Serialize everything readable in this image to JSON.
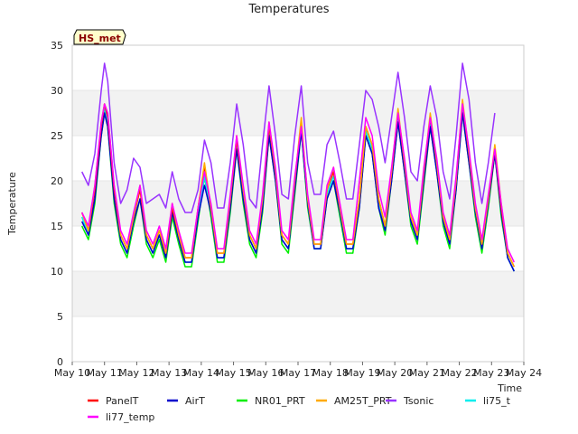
{
  "chart_data": {
    "type": "line",
    "title": "Temperatures",
    "xlabel": "Time",
    "ylabel": "Temperature",
    "ylim": [
      0,
      35
    ],
    "xlim": [
      10,
      24
    ],
    "yticks": [
      0,
      5,
      10,
      15,
      20,
      25,
      30,
      35
    ],
    "xticks": [
      {
        "v": 10,
        "label": "May 10"
      },
      {
        "v": 11,
        "label": "May 11"
      },
      {
        "v": 12,
        "label": "May 12"
      },
      {
        "v": 13,
        "label": "May 13"
      },
      {
        "v": 14,
        "label": "May 14"
      },
      {
        "v": 15,
        "label": "May 15"
      },
      {
        "v": 16,
        "label": "May 16"
      },
      {
        "v": 17,
        "label": "May 17"
      },
      {
        "v": 18,
        "label": "May 18"
      },
      {
        "v": 19,
        "label": "May 19"
      },
      {
        "v": 20,
        "label": "May 20"
      },
      {
        "v": 21,
        "label": "May 21"
      },
      {
        "v": 22,
        "label": "May 22"
      },
      {
        "v": 23,
        "label": "May 23"
      },
      {
        "v": 24,
        "label": "May 24"
      }
    ],
    "badge": "HS_met",
    "series": [
      {
        "name": "PanelT",
        "color": "#ff0000",
        "x": [
          10.3,
          10.5,
          10.7,
          10.9,
          11.0,
          11.1,
          11.3,
          11.5,
          11.7,
          11.9,
          12.1,
          12.3,
          12.5,
          12.7,
          12.9,
          13.1,
          13.3,
          13.5,
          13.7,
          13.9,
          14.1,
          14.3,
          14.5,
          14.7,
          14.9,
          15.1,
          15.3,
          15.5,
          15.7,
          15.9,
          16.1,
          16.3,
          16.5,
          16.7,
          16.9,
          17.1,
          17.3,
          17.5,
          17.7,
          17.9,
          18.1,
          18.3,
          18.5,
          18.7,
          18.9,
          19.1,
          19.3,
          19.5,
          19.7,
          19.9,
          20.1,
          20.3,
          20.5,
          20.7,
          20.9,
          21.1,
          21.3,
          21.5,
          21.7,
          21.9,
          22.1,
          22.3,
          22.5,
          22.7,
          22.9,
          23.1,
          23.3,
          23.5,
          23.7
        ],
        "values": [
          16.5,
          14.5,
          19,
          26,
          28.5,
          27,
          19,
          14,
          12.5,
          16,
          19,
          14,
          12.5,
          14.5,
          12,
          17,
          14,
          11.5,
          11.5,
          17,
          21.5,
          17,
          12,
          12,
          18,
          24.5,
          19,
          14,
          12.5,
          18,
          26,
          21,
          14,
          13,
          20,
          26.5,
          18,
          13,
          13,
          19,
          21,
          17,
          13,
          13,
          18,
          26,
          24,
          18,
          15,
          21,
          27.5,
          22,
          16,
          14,
          21,
          27,
          22,
          16,
          13.5,
          20,
          28.5,
          23,
          17,
          13,
          18,
          23.5,
          17,
          12,
          10.5
        ]
      },
      {
        "name": "AirT",
        "color": "#0000cc",
        "x": [
          10.3,
          10.5,
          10.7,
          10.9,
          11.0,
          11.1,
          11.3,
          11.5,
          11.7,
          11.9,
          12.1,
          12.3,
          12.5,
          12.7,
          12.9,
          13.1,
          13.3,
          13.5,
          13.7,
          13.9,
          14.1,
          14.3,
          14.5,
          14.7,
          14.9,
          15.1,
          15.3,
          15.5,
          15.7,
          15.9,
          16.1,
          16.3,
          16.5,
          16.7,
          16.9,
          17.1,
          17.3,
          17.5,
          17.7,
          17.9,
          18.1,
          18.3,
          18.5,
          18.7,
          18.9,
          19.1,
          19.3,
          19.5,
          19.7,
          19.9,
          20.1,
          20.3,
          20.5,
          20.7,
          20.9,
          21.1,
          21.3,
          21.5,
          21.7,
          21.9,
          22.1,
          22.3,
          22.5,
          22.7,
          22.9,
          23.1,
          23.3,
          23.5,
          23.7
        ],
        "values": [
          15.5,
          14,
          18,
          25,
          27.5,
          26,
          18,
          13.5,
          12,
          15.5,
          18,
          13.5,
          12,
          14,
          11.5,
          16.5,
          13.5,
          11,
          11,
          16,
          19.5,
          16.5,
          11.5,
          11.5,
          17,
          23.5,
          18,
          13.5,
          12,
          17,
          25,
          20,
          13.5,
          12.5,
          19,
          25.5,
          17.5,
          12.5,
          12.5,
          18,
          20,
          16.5,
          12.5,
          12.5,
          17,
          25,
          23,
          17,
          14.5,
          20,
          26.5,
          21,
          15.5,
          13.5,
          20,
          26,
          21,
          15.5,
          13,
          19,
          27.5,
          22,
          16.5,
          12.5,
          17.5,
          23,
          16.5,
          11.5,
          10
        ]
      },
      {
        "name": "NR01_PRT",
        "color": "#00ee00",
        "x": [
          10.3,
          10.5,
          10.7,
          10.9,
          11.0,
          11.1,
          11.3,
          11.5,
          11.7,
          11.9,
          12.1,
          12.3,
          12.5,
          12.7,
          12.9,
          13.1,
          13.3,
          13.5,
          13.7,
          13.9,
          14.1,
          14.3,
          14.5,
          14.7,
          14.9,
          15.1,
          15.3,
          15.5,
          15.7,
          15.9,
          16.1,
          16.3,
          16.5,
          16.7,
          16.9,
          17.1,
          17.3,
          17.5,
          17.7,
          17.9,
          18.1,
          18.3,
          18.5,
          18.7,
          18.9,
          19.1,
          19.3,
          19.5,
          19.7,
          19.9,
          20.1,
          20.3,
          20.5,
          20.7,
          20.9,
          21.1,
          21.3,
          21.5,
          21.7,
          21.9,
          22.1,
          22.3,
          22.5,
          22.7,
          22.9,
          23.1,
          23.3,
          23.5,
          23.7
        ],
        "values": [
          15,
          13.5,
          17.5,
          25,
          27.5,
          26,
          17.5,
          13,
          11.5,
          15,
          18,
          13,
          11.5,
          13.5,
          11,
          16,
          13,
          10.5,
          10.5,
          15.5,
          20.5,
          16,
          11,
          11,
          16.5,
          23.5,
          17.5,
          13,
          11.5,
          16.5,
          25,
          20,
          13,
          12,
          18.5,
          25.5,
          17,
          12.5,
          12.5,
          18,
          20,
          16,
          12,
          12,
          17,
          25,
          23,
          17,
          14,
          20,
          26.5,
          21,
          15,
          13,
          19.5,
          26,
          21,
          15,
          12.5,
          19,
          27.5,
          22,
          16,
          12,
          17,
          23,
          16,
          11.5,
          10
        ]
      },
      {
        "name": "AM25T_PRT",
        "color": "#ffaa00",
        "x": [
          10.3,
          10.5,
          10.7,
          10.9,
          11.0,
          11.1,
          11.3,
          11.5,
          11.7,
          11.9,
          12.1,
          12.3,
          12.5,
          12.7,
          12.9,
          13.1,
          13.3,
          13.5,
          13.7,
          13.9,
          14.1,
          14.3,
          14.5,
          14.7,
          14.9,
          15.1,
          15.3,
          15.5,
          15.7,
          15.9,
          16.1,
          16.3,
          16.5,
          16.7,
          16.9,
          17.1,
          17.3,
          17.5,
          17.7,
          17.9,
          18.1,
          18.3,
          18.5,
          18.7,
          18.9,
          19.1,
          19.3,
          19.5,
          19.7,
          19.9,
          20.1,
          20.3,
          20.5,
          20.7,
          20.9,
          21.1,
          21.3,
          21.5,
          21.7,
          21.9,
          22.1,
          22.3,
          22.5,
          22.7,
          22.9,
          23.1,
          23.3,
          23.5,
          23.7
        ],
        "values": [
          16.5,
          14.5,
          19.5,
          26.5,
          28.5,
          27.5,
          19.5,
          14,
          12.5,
          16,
          19.5,
          14,
          12.5,
          14.5,
          12,
          17.5,
          14,
          11.5,
          11.5,
          17,
          22,
          17,
          12,
          12,
          18,
          25,
          19,
          14,
          12.5,
          18,
          26.5,
          21,
          14,
          13,
          20,
          27,
          18,
          13,
          13,
          19,
          21.5,
          17,
          13,
          13,
          18,
          26,
          24,
          18,
          15,
          21,
          28,
          22,
          16,
          14,
          21,
          27.5,
          22,
          16,
          13.5,
          20,
          29,
          23,
          17,
          13,
          18,
          24,
          17.5,
          12,
          10.5
        ]
      },
      {
        "name": "Tsonic",
        "color": "#9933ff",
        "x": [
          10.3,
          10.5,
          10.7,
          10.9,
          11.0,
          11.1,
          11.3,
          11.5,
          11.7,
          11.9,
          12.1,
          12.3,
          12.5,
          12.7,
          12.9,
          13.1,
          13.3,
          13.5,
          13.7,
          13.9,
          14.1,
          14.3,
          14.5,
          14.7,
          14.9,
          15.1,
          15.3,
          15.5,
          15.7,
          15.9,
          16.1,
          16.3,
          16.5,
          16.7,
          16.9,
          17.1,
          17.3,
          17.5,
          17.7,
          17.9,
          18.1,
          18.3,
          18.5,
          18.7,
          18.9,
          19.1,
          19.3,
          19.5,
          19.7,
          19.9,
          20.1,
          20.3,
          20.5,
          20.7,
          20.9,
          21.1,
          21.3,
          21.5,
          21.7,
          21.9,
          22.1,
          22.3,
          22.5,
          22.7,
          22.9,
          23.1
        ],
        "values": [
          21,
          19.5,
          23,
          30,
          33,
          31,
          22,
          17.5,
          19,
          22.5,
          21.5,
          17.5,
          18,
          18.5,
          17,
          21,
          18,
          16.5,
          16.5,
          19,
          24.5,
          22,
          17,
          17,
          22,
          28.5,
          24,
          18,
          17,
          24,
          30.5,
          25,
          18.5,
          18,
          25,
          30.5,
          22,
          18.5,
          18.5,
          24,
          25.5,
          22,
          18,
          18,
          24,
          30,
          29,
          26,
          22,
          27,
          32,
          27,
          21,
          20,
          26,
          30.5,
          27,
          21,
          18,
          25,
          33,
          29,
          22,
          17.5,
          22,
          27.5
        ]
      },
      {
        "name": "li75_t",
        "color": "#00eeee",
        "x": [
          10.3,
          10.5,
          10.7,
          10.9,
          11.0,
          11.1,
          11.3,
          11.5,
          11.7,
          11.9,
          12.1,
          12.3,
          12.5,
          12.7,
          12.9,
          13.1,
          13.3,
          13.5,
          13.7,
          13.9,
          14.1,
          14.3,
          14.5,
          14.7,
          14.9,
          15.1,
          15.3,
          15.5,
          15.7,
          15.9,
          16.1,
          16.3,
          16.5,
          16.7,
          16.9,
          17.1,
          17.3,
          17.5,
          17.7,
          17.9,
          18.1,
          18.3,
          18.5,
          18.7,
          18.9,
          19.1,
          19.3,
          19.5,
          19.7,
          19.9,
          20.1,
          20.3,
          20.5,
          20.7,
          20.9,
          21.1,
          21.3,
          21.5,
          21.7,
          21.9,
          22.1,
          22.3,
          22.5,
          22.7,
          22.9,
          23.1,
          23.3,
          23.5,
          23.7
        ],
        "values": [
          16,
          14,
          18.5,
          25.5,
          28,
          26.5,
          18.5,
          13.5,
          12,
          15.5,
          19.5,
          13.5,
          12,
          14,
          11.5,
          17,
          13.5,
          11,
          11,
          16,
          20.5,
          16.5,
          11.5,
          11.5,
          17.5,
          24,
          18.5,
          13.5,
          12,
          17.5,
          25.5,
          20.5,
          13.5,
          12.5,
          19.5,
          26,
          17.5,
          12.5,
          12.5,
          18.5,
          20.5,
          16.5,
          12.5,
          12.5,
          17.5,
          25.5,
          23.5,
          17.5,
          14.5,
          20.5,
          27,
          21.5,
          15.5,
          13.5,
          20.5,
          26.5,
          21.5,
          15.5,
          13,
          19.5,
          28,
          22.5,
          16.5,
          12.5,
          17.5,
          23.5,
          16.5,
          11.5,
          10
        ]
      },
      {
        "name": "li77_temp",
        "color": "#ff00ff",
        "x": [
          10.3,
          10.5,
          10.7,
          10.9,
          11.0,
          11.1,
          11.3,
          11.5,
          11.7,
          11.9,
          12.1,
          12.3,
          12.5,
          12.7,
          12.9,
          13.1,
          13.3,
          13.5,
          13.7,
          13.9,
          14.1,
          14.3,
          14.5,
          14.7,
          14.9,
          15.1,
          15.3,
          15.5,
          15.7,
          15.9,
          16.1,
          16.3,
          16.5,
          16.7,
          16.9,
          17.1,
          17.3,
          17.5,
          17.7,
          17.9,
          18.1,
          18.3,
          18.5,
          18.7,
          18.9,
          19.1,
          19.3,
          19.5,
          19.7,
          19.9,
          20.1,
          20.3,
          20.5,
          20.7,
          20.9,
          21.1,
          21.3,
          21.5,
          21.7,
          21.9,
          22.1,
          22.3,
          22.5,
          22.7,
          22.9,
          23.1,
          23.3,
          23.5,
          23.7
        ],
        "values": [
          16.5,
          15,
          19.5,
          26.5,
          28.5,
          27.5,
          19.5,
          14.5,
          13,
          16.5,
          19.5,
          14.5,
          13,
          15,
          12.5,
          17.5,
          14.5,
          12,
          12,
          17,
          21,
          17.5,
          12.5,
          12.5,
          18.5,
          25,
          19.5,
          14.5,
          13,
          18.5,
          26.5,
          21.5,
          14.5,
          13.5,
          20.5,
          26,
          18.5,
          13.5,
          13.5,
          19.5,
          21.5,
          17.5,
          13.5,
          13.5,
          20,
          27,
          25,
          19,
          16,
          21.5,
          27.5,
          22.5,
          16.5,
          14.5,
          21.5,
          27,
          22.5,
          16.5,
          14,
          20.5,
          28.5,
          23.5,
          17.5,
          13.5,
          18.5,
          23.5,
          17.5,
          12.5,
          11
        ]
      }
    ]
  }
}
